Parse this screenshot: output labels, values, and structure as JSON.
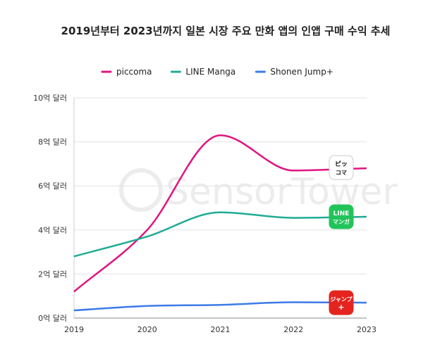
{
  "chart_data": {
    "type": "line",
    "title": "2019년부터 2023년까지 일본 시장 주요 만화 앱의 인앱 구매 수익 추세",
    "xlabel": "",
    "ylabel": "",
    "x": [
      "2019",
      "2020",
      "2021",
      "2022",
      "2023"
    ],
    "ylim": [
      0,
      10
    ],
    "yticks": [
      {
        "v": 0,
        "label": "0억 달러"
      },
      {
        "v": 2,
        "label": "2억 달러"
      },
      {
        "v": 4,
        "label": "4억 달러"
      },
      {
        "v": 6,
        "label": "6억 달러"
      },
      {
        "v": 8,
        "label": "8억 달러"
      },
      {
        "v": 10,
        "label": "10억 달러"
      }
    ],
    "grid": true,
    "legend": "top",
    "series": [
      {
        "name": "piccoma",
        "color": "#e0157f",
        "values": [
          1.2,
          4.0,
          8.3,
          6.7,
          6.8
        ],
        "logo": "ピッコマ"
      },
      {
        "name": "LINE Manga",
        "color": "#1fab95",
        "values": [
          2.8,
          3.7,
          4.8,
          4.55,
          4.6
        ],
        "logo": "LINE マンガ"
      },
      {
        "name": "Shonen Jump+",
        "color": "#3d7be8",
        "values": [
          0.35,
          0.55,
          0.6,
          0.72,
          0.7
        ],
        "logo": "少年ジャンプ+"
      }
    ],
    "watermark": "SensorTower"
  }
}
